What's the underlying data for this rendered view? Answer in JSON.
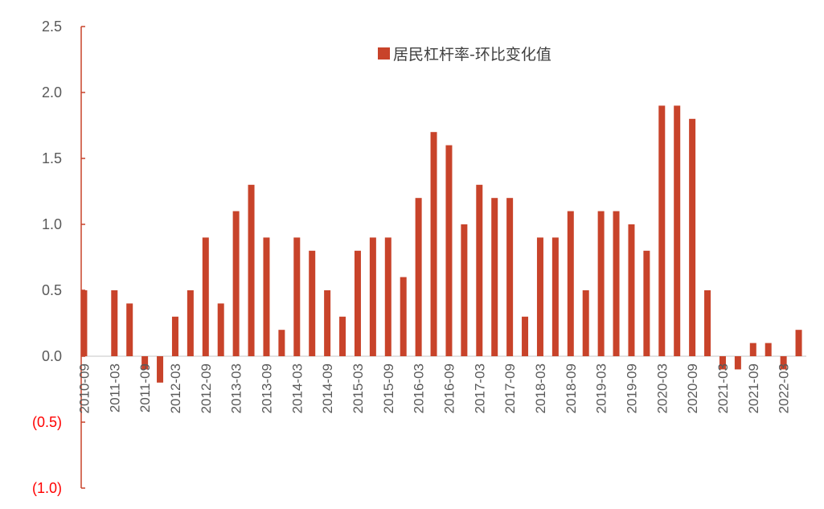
{
  "chart_data": {
    "type": "bar",
    "legend": {
      "label": "居民杠杆率-环比变化值",
      "placement": "top-center"
    },
    "colors": {
      "bar": "#C8432A",
      "axis": "#C8432A",
      "zero_line": "#D9D9D9",
      "positive_tick": "#595959",
      "negative_tick": "#FF0000"
    },
    "ylim": [
      -1.0,
      2.5
    ],
    "yticks": [
      {
        "value": 2.5,
        "label": "2.5"
      },
      {
        "value": 2.0,
        "label": "2.0"
      },
      {
        "value": 1.5,
        "label": "1.5"
      },
      {
        "value": 1.0,
        "label": "1.0"
      },
      {
        "value": 0.5,
        "label": "0.5"
      },
      {
        "value": 0.0,
        "label": "0.0"
      },
      {
        "value": -0.5,
        "label": "(0.5)"
      },
      {
        "value": -1.0,
        "label": "(1.0)"
      }
    ],
    "categories": [
      "2010-09",
      "2010-12",
      "2011-03",
      "2011-06",
      "2011-09",
      "2011-12",
      "2012-03",
      "2012-06",
      "2012-09",
      "2012-12",
      "2013-03",
      "2013-06",
      "2013-09",
      "2013-12",
      "2014-03",
      "2014-06",
      "2014-09",
      "2014-12",
      "2015-03",
      "2015-06",
      "2015-09",
      "2015-12",
      "2016-03",
      "2016-06",
      "2016-09",
      "2016-12",
      "2017-03",
      "2017-06",
      "2017-09",
      "2017-12",
      "2018-03",
      "2018-06",
      "2018-09",
      "2018-12",
      "2019-03",
      "2019-06",
      "2019-09",
      "2019-12",
      "2020-03",
      "2020-06",
      "2020-09",
      "2020-12",
      "2021-03",
      "2021-06",
      "2021-09",
      "2021-12",
      "2022-03",
      "2022-06"
    ],
    "x_tick_labels": [
      "2010-09",
      "2011-03",
      "2011-09",
      "2012-03",
      "2012-09",
      "2013-03",
      "2013-09",
      "2014-03",
      "2014-09",
      "2015-03",
      "2015-09",
      "2016-03",
      "2016-09",
      "2017-03",
      "2017-09",
      "2018-03",
      "2018-09",
      "2019-03",
      "2019-09",
      "2020-03",
      "2020-09",
      "2021-03",
      "2021-09",
      "2022-03"
    ],
    "values": [
      0.5,
      0.0,
      0.5,
      0.4,
      -0.1,
      -0.2,
      0.3,
      0.5,
      0.9,
      0.4,
      1.1,
      1.3,
      0.9,
      0.2,
      0.9,
      0.8,
      0.5,
      0.3,
      0.8,
      0.9,
      0.9,
      0.6,
      1.2,
      1.7,
      1.6,
      1.0,
      1.3,
      1.2,
      1.2,
      0.3,
      0.9,
      0.9,
      1.1,
      0.5,
      1.1,
      1.1,
      1.0,
      0.8,
      1.9,
      1.9,
      1.8,
      0.5,
      -0.1,
      -0.1,
      0.1,
      0.1,
      -0.1,
      0.2
    ]
  }
}
